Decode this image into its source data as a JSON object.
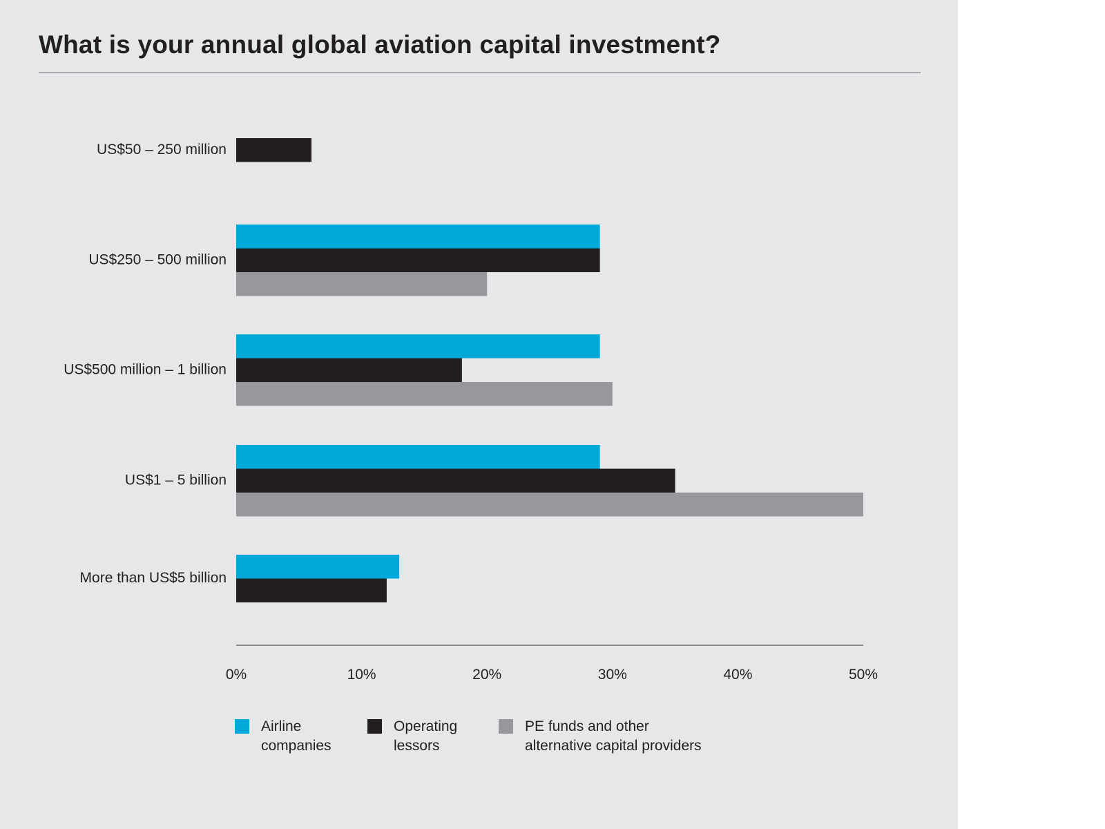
{
  "chart_data": {
    "type": "bar",
    "orientation": "horizontal",
    "title": "What is your annual global aviation capital investment?",
    "categories": [
      "US$50 – 250 million",
      "US$250 – 500 million",
      "US$500 million – 1 billion",
      "US$1 – 5 billion",
      "More than US$5 billion"
    ],
    "series": [
      {
        "name": "Airline companies",
        "legend_lines": [
          "Airline",
          "companies"
        ],
        "color": "#00a9d9",
        "values": [
          null,
          29,
          29,
          29,
          13
        ]
      },
      {
        "name": "Operating lessors",
        "legend_lines": [
          "Operating",
          "lessors"
        ],
        "color": "#231f20",
        "values": [
          6,
          29,
          18,
          35,
          12
        ]
      },
      {
        "name": "PE funds and other alternative capital providers",
        "legend_lines": [
          "PE funds and other",
          "alternative capital providers"
        ],
        "color": "#97989b",
        "values": [
          null,
          20,
          30,
          50,
          null
        ]
      }
    ],
    "xlim": [
      0,
      50
    ],
    "xticks": [
      0,
      10,
      20,
      30,
      40,
      50
    ],
    "xtick_labels": [
      "0%",
      "10%",
      "20%",
      "30%",
      "40%",
      "50%"
    ],
    "xlabel": "",
    "ylabel": "",
    "grid": false,
    "legend_position": "bottom"
  }
}
